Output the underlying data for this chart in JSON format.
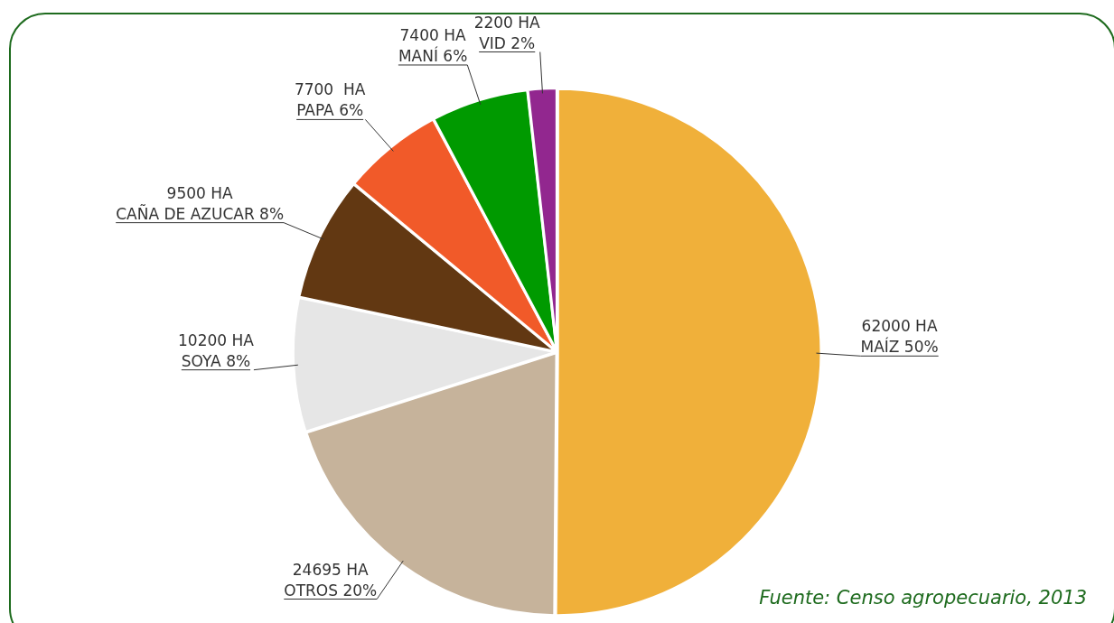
{
  "chart_data": {
    "type": "pie",
    "categories": [
      "MAÍZ 50%",
      "OTROS 20%",
      "SOYA 8%",
      "CAÑA DE AZUCAR 8%",
      "PAPA 6%",
      "MANÍ 6%",
      "VID 2%"
    ],
    "values": [
      62000,
      24695,
      10200,
      9500,
      7700,
      7400,
      2200
    ],
    "value_labels": [
      "62000 HA",
      "24695 HA",
      "10200 HA",
      "9500 HA",
      "7700  HA",
      "7400 HA",
      "2200 HA"
    ],
    "colors": [
      "#f0b03a",
      "#c6b39b",
      "#e6e6e6",
      "#623812",
      "#f15a29",
      "#009a00",
      "#92278f"
    ],
    "legend": false,
    "annotations": [
      "Fuente: Censo agropecuario, 2013"
    ]
  }
}
